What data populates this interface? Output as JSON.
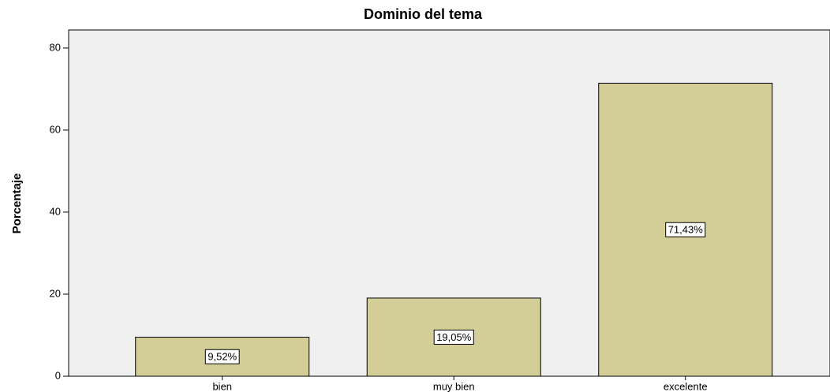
{
  "chart_data": {
    "type": "bar",
    "title": "Dominio del tema",
    "y_label": "Porcentaje",
    "categories": [
      "bien",
      "muy bien",
      "excelente"
    ],
    "values": [
      9.52,
      19.05,
      71.43
    ],
    "value_labels": [
      "9,52%",
      "19,05%",
      "71,43%"
    ],
    "color": "#d3ce97",
    "ylim": [
      0,
      84.4
    ],
    "yticks": [
      0,
      20,
      40,
      60,
      80
    ],
    "grid": false
  }
}
